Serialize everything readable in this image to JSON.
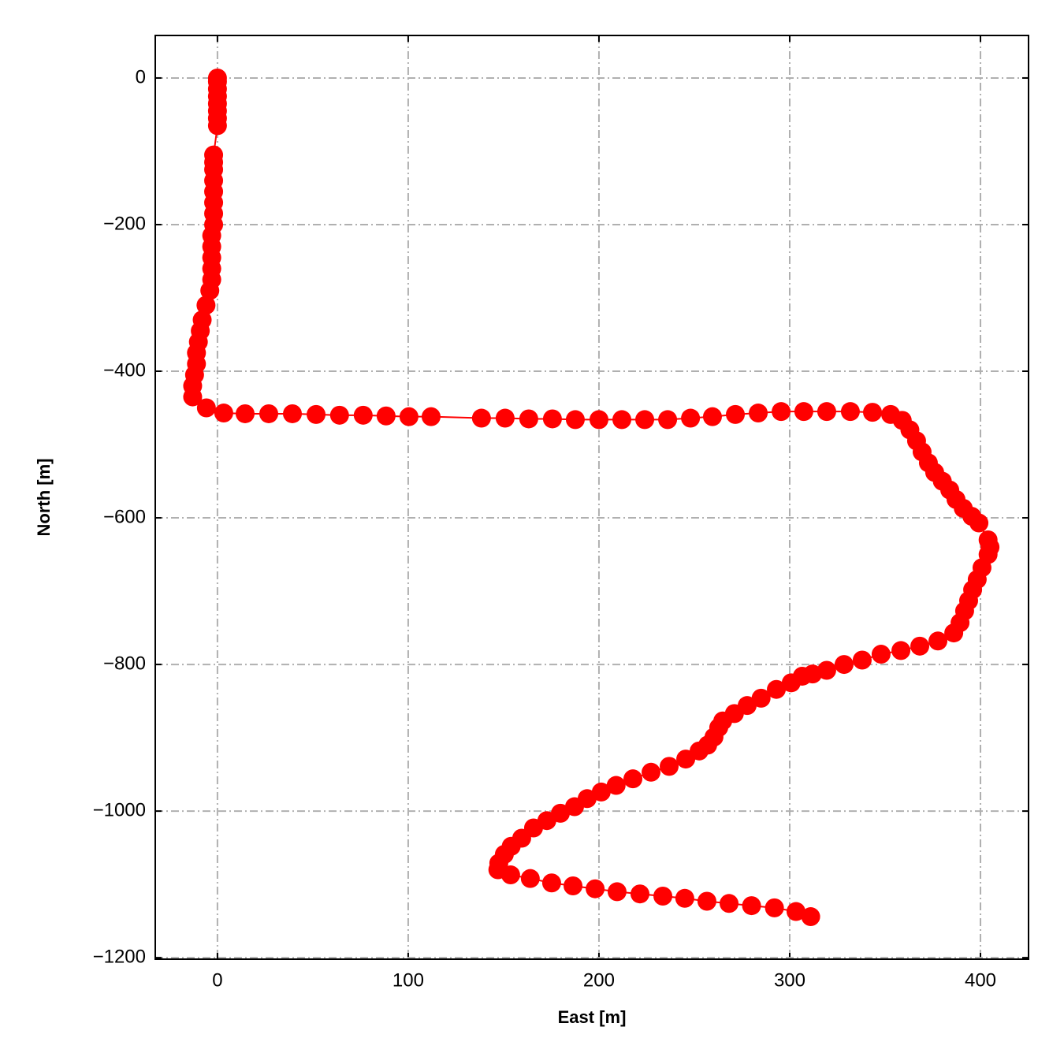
{
  "chart_data": {
    "type": "line",
    "x_label": "East [m]",
    "y_label": "North [m]",
    "xlim": [
      -32.6,
      425.2
    ],
    "ylim": [
      -1202,
      58
    ],
    "xticks": [
      0,
      100,
      200,
      300,
      400
    ],
    "yticks": [
      0,
      {
        "value": -200,
        "label": "−200"
      },
      {
        "value": -400,
        "label": "−400"
      },
      {
        "value": -600,
        "label": "−600"
      },
      {
        "value": -800,
        "label": "−800"
      },
      {
        "value": -1000,
        "label": "−1000"
      },
      {
        "value": -1200,
        "label": "−1200"
      }
    ],
    "grid": true,
    "x": [
      0,
      0,
      0,
      0,
      0,
      0,
      0,
      0,
      -2,
      -2,
      -2,
      -2,
      -2,
      -2,
      -2,
      -2,
      -3,
      -3,
      -3,
      -3,
      -3,
      -4,
      -6,
      -8,
      -9,
      -10,
      -11,
      -11,
      -12,
      -13,
      -13,
      -5.8,
      3.3,
      14.5,
      26.9,
      39.3,
      51.7,
      64,
      76.4,
      88.4,
      100.4,
      112,
      138.4,
      150.8,
      163.2,
      175.6,
      187.6,
      200,
      212,
      224,
      236,
      248,
      259.5,
      271.5,
      283.5,
      295.5,
      307.4,
      319.4,
      331.8,
      343.4,
      352.9,
      359,
      363,
      366.5,
      369.4,
      372.7,
      376,
      380,
      383.9,
      387.2,
      391,
      395.5,
      399.2,
      404,
      405,
      404,
      400.8,
      398.3,
      395.9,
      393.8,
      391.7,
      389.3,
      386,
      377.7,
      368.2,
      358.3,
      347.9,
      338,
      328.5,
      319.4,
      312,
      306.6,
      300.8,
      293,
      285,
      277.7,
      271,
      264.9,
      262.8,
      260.3,
      257,
      252.5,
      245.5,
      236.8,
      227.3,
      217.8,
      209,
      201.2,
      193.8,
      187.2,
      179.8,
      172.7,
      165.7,
      159.5,
      154,
      150.4,
      147.5,
      147,
      153.7,
      164,
      175.2,
      186.4,
      198,
      209.5,
      221.5,
      233.5,
      245,
      256.6,
      268.2,
      280,
      292,
      303.3,
      311
    ],
    "series": [
      {
        "color": "#ff0000",
        "values": [
          0,
          -5,
          -15,
          -25,
          -35,
          -45,
          -55,
          -65,
          -105,
          -115,
          -125,
          -140,
          -155,
          -170,
          -185,
          -200,
          -215,
          -230,
          -245,
          -260,
          -275,
          -290,
          -310,
          -330,
          -345,
          -360,
          -375,
          -390,
          -405,
          -420,
          -435,
          -450,
          -457,
          -458,
          -458,
          -458,
          -459,
          -460,
          -460,
          -461,
          -462,
          -462,
          -464,
          -464,
          -465,
          -465,
          -466,
          -466,
          -466,
          -466,
          -466,
          -464,
          -462,
          -459,
          -457,
          -455,
          -455,
          -455,
          -455,
          -456,
          -459,
          -467,
          -480,
          -495,
          -510,
          -525,
          -538,
          -550,
          -562,
          -575,
          -587,
          -598,
          -607,
          -630,
          -640,
          -650,
          -668,
          -684,
          -698,
          -713,
          -727,
          -743,
          -757,
          -768,
          -775,
          -781,
          -786,
          -794,
          -800,
          -808,
          -813,
          -816,
          -825,
          -834,
          -846,
          -856,
          -867,
          -877,
          -886,
          -899,
          -910,
          -918,
          -929,
          -939,
          -947,
          -956,
          -965,
          -974,
          -983,
          -994,
          -1003,
          -1013,
          -1023,
          -1037,
          -1048,
          -1059,
          -1071,
          -1080,
          -1087,
          -1092,
          -1098,
          -1102,
          -1106,
          -1110,
          -1113,
          -1116,
          -1119,
          -1123,
          -1126,
          -1129,
          -1132,
          -1137,
          -1144
        ]
      }
    ]
  }
}
